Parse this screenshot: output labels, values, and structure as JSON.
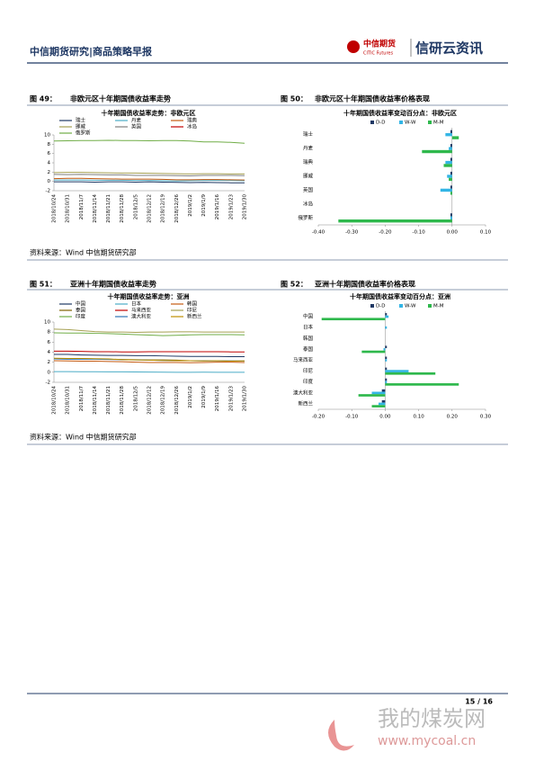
{
  "header": {
    "left": "中信期货研究|商品策略早报",
    "logo_cn": "中信期货",
    "logo_en": "CITIC Futures",
    "brand": "信研云资讯"
  },
  "figures": [
    {
      "number": "图 49：",
      "title": "非欧元区十年期国债收益率走势",
      "source": "资料来源：Wind 中信期货研究部"
    },
    {
      "number": "图 50：",
      "title": "非欧元区十年期国债收益率价格表现"
    },
    {
      "number": "图 51：",
      "title": "亚洲十年期国债收益率走势",
      "source": "资料来源：Wind 中信期货研究部"
    },
    {
      "number": "图 52：",
      "title": "亚洲十年期国债收益率价格表现"
    }
  ],
  "chart_data": [
    {
      "type": "line",
      "title": "十年期国债收益率走势：非欧元区",
      "categories": [
        "2018/10/24",
        "2018/10/31",
        "2018/11/7",
        "2018/11/14",
        "2018/11/21",
        "2018/11/28",
        "2018/12/5",
        "2018/12/12",
        "2018/12/19",
        "2018/12/26",
        "2019/1/2",
        "2019/1/9",
        "2019/1/16",
        "2019/1/23",
        "2019/1/30"
      ],
      "series": [
        {
          "name": "瑞士",
          "color": "#1f3864",
          "values": [
            -0.1,
            -0.1,
            -0.1,
            -0.15,
            -0.1,
            -0.1,
            -0.15,
            -0.1,
            -0.15,
            -0.2,
            -0.25,
            -0.2,
            -0.25,
            -0.3,
            -0.3
          ]
        },
        {
          "name": "丹麦",
          "color": "#4bacc6",
          "values": [
            0.3,
            0.3,
            0.3,
            0.25,
            0.25,
            0.25,
            0.2,
            0.2,
            0.15,
            0.1,
            0.15,
            0.2,
            0.2,
            0.2,
            0.15
          ]
        },
        {
          "name": "瑞典",
          "color": "#c55a11",
          "values": [
            0.6,
            0.65,
            0.65,
            0.6,
            0.55,
            0.5,
            0.5,
            0.5,
            0.45,
            0.35,
            0.35,
            0.4,
            0.4,
            0.35,
            0.3
          ]
        },
        {
          "name": "挪威",
          "color": "#a5a052",
          "values": [
            1.9,
            1.95,
            1.95,
            1.9,
            1.85,
            1.8,
            1.8,
            1.75,
            1.7,
            1.65,
            1.6,
            1.65,
            1.65,
            1.6,
            1.6
          ]
        },
        {
          "name": "英国",
          "color": "#7f7f7f",
          "values": [
            1.5,
            1.45,
            1.5,
            1.45,
            1.4,
            1.4,
            1.3,
            1.3,
            1.3,
            1.25,
            1.2,
            1.3,
            1.3,
            1.3,
            1.25
          ]
        },
        {
          "name": "冰岛",
          "color": "#c00000",
          "values": [
            null,
            null,
            null,
            null,
            null,
            null,
            null,
            null,
            null,
            null,
            null,
            null,
            null,
            null,
            null
          ]
        },
        {
          "name": "俄罗斯",
          "color": "#70ad47",
          "values": [
            8.7,
            8.75,
            8.8,
            8.8,
            8.85,
            8.8,
            8.8,
            8.75,
            8.8,
            8.8,
            8.7,
            8.5,
            8.5,
            8.4,
            8.2
          ]
        }
      ],
      "ylim": [
        -2,
        10
      ],
      "yticks": [
        -2,
        0,
        2,
        4,
        6,
        8,
        10
      ],
      "grid": false
    },
    {
      "type": "hbar",
      "title": "十年期国债收益率变动百分点：非欧元区",
      "categories": [
        "瑞士",
        "丹麦",
        "瑞典",
        "挪威",
        "英国",
        "冰岛",
        "俄罗斯"
      ],
      "series": [
        {
          "name": "D-D",
          "color": "#1f3864",
          "values": [
            -0.005,
            -0.005,
            -0.005,
            -0.005,
            -0.005,
            0,
            -0.005
          ]
        },
        {
          "name": "W-W",
          "color": "#33b5e5",
          "values": [
            -0.02,
            -0.01,
            -0.02,
            -0.015,
            -0.035,
            0,
            -0.005
          ]
        },
        {
          "name": "M-M",
          "color": "#2eb84c",
          "values": [
            0.02,
            -0.09,
            -0.025,
            -0.01,
            -0.005,
            0,
            -0.34
          ]
        }
      ],
      "xlim": [
        -0.4,
        0.1
      ],
      "xticks": [
        {
          "value": -0.4,
          "label": "-0.40"
        },
        {
          "value": -0.3,
          "label": "-0.30"
        },
        {
          "value": -0.2,
          "label": "-0.20"
        },
        {
          "value": -0.1,
          "label": "-0.10"
        },
        {
          "value": 0,
          "label": "0.00"
        },
        {
          "value": 0.1,
          "label": "0.10"
        }
      ],
      "grid": false
    },
    {
      "type": "line",
      "title": "十年期国债收益率走势：亚洲",
      "categories": [
        "2018/10/24",
        "2018/10/31",
        "2018/11/7",
        "2018/11/14",
        "2018/11/21",
        "2018/11/28",
        "2018/12/5",
        "2018/12/12",
        "2018/12/19",
        "2018/12/26",
        "2019/1/2",
        "2019/1/9",
        "2019/1/16",
        "2019/1/23",
        "2019/1/30"
      ],
      "series": [
        {
          "name": "中国",
          "color": "#1f3864",
          "values": [
            3.55,
            3.55,
            3.45,
            3.4,
            3.35,
            3.35,
            3.3,
            3.3,
            3.25,
            3.2,
            3.15,
            3.15,
            3.15,
            3.1,
            3.1
          ]
        },
        {
          "name": "日本",
          "color": "#4bacc6",
          "values": [
            0.12,
            0.12,
            0.1,
            0.1,
            0.09,
            0.08,
            0.06,
            0.04,
            0.02,
            0,
            0,
            0.02,
            0,
            0,
            0
          ]
        },
        {
          "name": "韩国",
          "color": "#c55a11",
          "values": [
            2.3,
            2.25,
            2.2,
            2.2,
            2.15,
            2.1,
            2,
            1.95,
            1.95,
            1.95,
            1.9,
            1.95,
            2,
            2,
            1.95
          ]
        },
        {
          "name": "泰国",
          "color": "#7f6000",
          "values": [
            2.7,
            2.7,
            2.7,
            2.65,
            2.6,
            2.55,
            2.5,
            2.45,
            2.45,
            2.4,
            2.3,
            2.3,
            2.3,
            2.25,
            2.25
          ]
        },
        {
          "name": "马来西亚",
          "color": "#c00000",
          "values": [
            4.2,
            4.2,
            4.15,
            4.1,
            4.1,
            4.05,
            4.05,
            4.1,
            4.1,
            4.1,
            4.1,
            4.1,
            4.1,
            4.05,
            4.05
          ]
        },
        {
          "name": "印尼",
          "color": "#a5a052",
          "values": [
            8.6,
            8.5,
            8.3,
            8.1,
            8,
            8,
            7.95,
            8,
            8,
            8.05,
            8.05,
            8,
            8,
            8,
            8
          ]
        },
        {
          "name": "印度",
          "color": "#70ad47",
          "values": [
            7.85,
            7.8,
            7.8,
            7.75,
            7.7,
            7.6,
            7.5,
            7.4,
            7.3,
            7.35,
            7.45,
            7.5,
            7.5,
            7.5,
            7.45
          ]
        },
        {
          "name": "澳大利亚",
          "color": "#2e75b6",
          "values": [
            2.65,
            2.6,
            2.6,
            2.6,
            2.55,
            2.5,
            2.45,
            2.4,
            2.35,
            2.3,
            2.3,
            2.25,
            2.25,
            2.25,
            2.2
          ]
        },
        {
          "name": "新西兰",
          "color": "#bf9000",
          "values": [
            2.8,
            2.75,
            2.75,
            2.7,
            2.65,
            2.5,
            2.45,
            2.4,
            2.35,
            2.3,
            2.3,
            2.25,
            2.3,
            2.2,
            2.25
          ]
        }
      ],
      "ylim": [
        -2,
        10
      ],
      "yticks": [
        -2,
        0,
        2,
        4,
        6,
        8,
        10
      ],
      "grid": false
    },
    {
      "type": "hbar",
      "title": "十年期国债收益率变动百分点：亚洲",
      "categories": [
        "中国",
        "日本",
        "韩国",
        "泰国",
        "马来西亚",
        "印尼",
        "印度",
        "澳大利亚",
        "新西兰"
      ],
      "series": [
        {
          "name": "D-D",
          "color": "#1f3864",
          "values": [
            0.005,
            0,
            0,
            0.005,
            0.005,
            0.005,
            0.005,
            -0.01,
            -0.01
          ]
        },
        {
          "name": "W-W",
          "color": "#33b5e5",
          "values": [
            0.01,
            0.005,
            0,
            -0.005,
            0.005,
            0.07,
            0.005,
            -0.04,
            -0.02
          ]
        },
        {
          "name": "M-M",
          "color": "#2eb84c",
          "values": [
            -0.19,
            0,
            0,
            -0.07,
            0,
            0.15,
            0.22,
            -0.08,
            -0.04
          ]
        }
      ],
      "xlim": [
        -0.2,
        0.3
      ],
      "xticks": [
        {
          "value": -0.2,
          "label": "-0.20"
        },
        {
          "value": -0.1,
          "label": "-0.10"
        },
        {
          "value": 0,
          "label": "0.00"
        },
        {
          "value": 0.1,
          "label": "0.10"
        },
        {
          "value": 0.2,
          "label": "0.20"
        },
        {
          "value": 0.3,
          "label": "0.30"
        }
      ],
      "grid": false
    }
  ],
  "footer": {
    "page": "15 / 16"
  },
  "watermark": {
    "cn": "我的煤炭网",
    "url": "www.mycoal.cn"
  }
}
